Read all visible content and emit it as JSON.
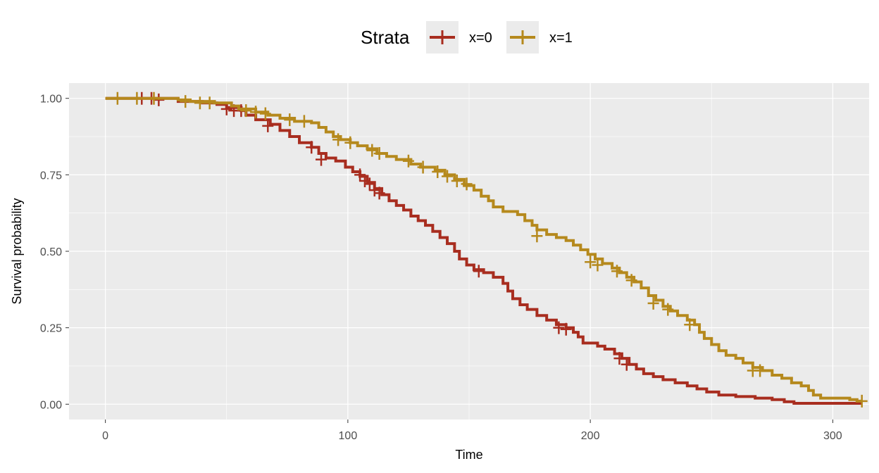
{
  "chart_data": {
    "type": "line",
    "subtype": "kaplan-meier step",
    "xlabel": "Time",
    "ylabel": "Survival probability",
    "xlim": [
      -15,
      315
    ],
    "ylim": [
      -0.05,
      1.05
    ],
    "x_ticks": [
      0,
      100,
      200,
      300
    ],
    "y_ticks": [
      0.0,
      0.25,
      0.5,
      0.75,
      1.0
    ],
    "x_tick_labels": [
      "0",
      "100",
      "200",
      "300"
    ],
    "y_tick_labels": [
      "0.00",
      "0.25",
      "0.50",
      "0.75",
      "1.00"
    ],
    "grid": true,
    "background": "#ebebeb",
    "legend": {
      "title": "Strata",
      "position": "top"
    },
    "series": [
      {
        "name": "x=0",
        "color": "#a82d1f",
        "points": [
          [
            0,
            1.0
          ],
          [
            25,
            1.0
          ],
          [
            30,
            0.99
          ],
          [
            40,
            0.985
          ],
          [
            46,
            0.98
          ],
          [
            50,
            0.97
          ],
          [
            56,
            0.96
          ],
          [
            58,
            0.945
          ],
          [
            62,
            0.93
          ],
          [
            68,
            0.915
          ],
          [
            72,
            0.895
          ],
          [
            76,
            0.875
          ],
          [
            80,
            0.855
          ],
          [
            85,
            0.84
          ],
          [
            88,
            0.82
          ],
          [
            91,
            0.805
          ],
          [
            95,
            0.795
          ],
          [
            99,
            0.775
          ],
          [
            102,
            0.76
          ],
          [
            105,
            0.745
          ],
          [
            108,
            0.725
          ],
          [
            111,
            0.705
          ],
          [
            114,
            0.685
          ],
          [
            117,
            0.665
          ],
          [
            120,
            0.65
          ],
          [
            123,
            0.635
          ],
          [
            126,
            0.615
          ],
          [
            129,
            0.6
          ],
          [
            132,
            0.585
          ],
          [
            135,
            0.565
          ],
          [
            138,
            0.545
          ],
          [
            141,
            0.525
          ],
          [
            144,
            0.5
          ],
          [
            146,
            0.475
          ],
          [
            149,
            0.455
          ],
          [
            152,
            0.44
          ],
          [
            156,
            0.43
          ],
          [
            160,
            0.415
          ],
          [
            164,
            0.395
          ],
          [
            166,
            0.37
          ],
          [
            168,
            0.345
          ],
          [
            171,
            0.325
          ],
          [
            174,
            0.31
          ],
          [
            178,
            0.29
          ],
          [
            182,
            0.275
          ],
          [
            186,
            0.26
          ],
          [
            190,
            0.25
          ],
          [
            193,
            0.235
          ],
          [
            195,
            0.22
          ],
          [
            197,
            0.2
          ],
          [
            203,
            0.19
          ],
          [
            206,
            0.18
          ],
          [
            210,
            0.165
          ],
          [
            213,
            0.15
          ],
          [
            216,
            0.13
          ],
          [
            219,
            0.115
          ],
          [
            222,
            0.1
          ],
          [
            226,
            0.09
          ],
          [
            230,
            0.08
          ],
          [
            235,
            0.07
          ],
          [
            240,
            0.06
          ],
          [
            244,
            0.05
          ],
          [
            248,
            0.04
          ],
          [
            253,
            0.03
          ],
          [
            260,
            0.025
          ],
          [
            268,
            0.02
          ],
          [
            275,
            0.015
          ],
          [
            280,
            0.008
          ],
          [
            284,
            0.003
          ],
          [
            312,
            0.003
          ]
        ],
        "censored": [
          [
            15,
            1.0
          ],
          [
            19,
            1.0
          ],
          [
            22,
            0.995
          ],
          [
            50,
            0.965
          ],
          [
            53,
            0.96
          ],
          [
            56,
            0.96
          ],
          [
            67,
            0.91
          ],
          [
            85,
            0.84
          ],
          [
            89,
            0.8
          ],
          [
            105,
            0.75
          ],
          [
            107,
            0.73
          ],
          [
            109,
            0.72
          ],
          [
            111,
            0.7
          ],
          [
            113,
            0.69
          ],
          [
            154,
            0.435
          ],
          [
            187,
            0.25
          ],
          [
            190,
            0.245
          ],
          [
            212,
            0.15
          ],
          [
            215,
            0.13
          ]
        ]
      },
      {
        "name": "x=1",
        "color": "#b5891d",
        "points": [
          [
            0,
            1.0
          ],
          [
            30,
            0.995
          ],
          [
            35,
            0.99
          ],
          [
            45,
            0.985
          ],
          [
            52,
            0.975
          ],
          [
            55,
            0.965
          ],
          [
            62,
            0.955
          ],
          [
            67,
            0.945
          ],
          [
            72,
            0.935
          ],
          [
            78,
            0.925
          ],
          [
            85,
            0.92
          ],
          [
            88,
            0.905
          ],
          [
            91,
            0.89
          ],
          [
            94,
            0.875
          ],
          [
            97,
            0.865
          ],
          [
            101,
            0.855
          ],
          [
            104,
            0.845
          ],
          [
            108,
            0.835
          ],
          [
            112,
            0.82
          ],
          [
            116,
            0.81
          ],
          [
            120,
            0.8
          ],
          [
            126,
            0.785
          ],
          [
            130,
            0.775
          ],
          [
            136,
            0.765
          ],
          [
            140,
            0.75
          ],
          [
            144,
            0.735
          ],
          [
            148,
            0.715
          ],
          [
            152,
            0.7
          ],
          [
            155,
            0.68
          ],
          [
            158,
            0.665
          ],
          [
            160,
            0.645
          ],
          [
            164,
            0.63
          ],
          [
            170,
            0.62
          ],
          [
            173,
            0.6
          ],
          [
            176,
            0.585
          ],
          [
            178,
            0.57
          ],
          [
            182,
            0.555
          ],
          [
            186,
            0.545
          ],
          [
            190,
            0.535
          ],
          [
            193,
            0.52
          ],
          [
            196,
            0.505
          ],
          [
            199,
            0.49
          ],
          [
            202,
            0.475
          ],
          [
            205,
            0.46
          ],
          [
            209,
            0.445
          ],
          [
            212,
            0.43
          ],
          [
            215,
            0.415
          ],
          [
            218,
            0.4
          ],
          [
            221,
            0.38
          ],
          [
            224,
            0.355
          ],
          [
            227,
            0.34
          ],
          [
            230,
            0.32
          ],
          [
            233,
            0.305
          ],
          [
            236,
            0.29
          ],
          [
            240,
            0.275
          ],
          [
            243,
            0.26
          ],
          [
            245,
            0.235
          ],
          [
            247,
            0.215
          ],
          [
            250,
            0.195
          ],
          [
            253,
            0.175
          ],
          [
            256,
            0.16
          ],
          [
            260,
            0.15
          ],
          [
            263,
            0.135
          ],
          [
            267,
            0.12
          ],
          [
            271,
            0.11
          ],
          [
            275,
            0.095
          ],
          [
            279,
            0.085
          ],
          [
            283,
            0.07
          ],
          [
            287,
            0.06
          ],
          [
            290,
            0.045
          ],
          [
            292,
            0.03
          ],
          [
            295,
            0.02
          ],
          [
            307,
            0.015
          ],
          [
            310,
            0.01
          ],
          [
            312,
            0.01
          ]
        ],
        "censored": [
          [
            5,
            1.0
          ],
          [
            13,
            1.0
          ],
          [
            20,
            1.0
          ],
          [
            33,
            0.99
          ],
          [
            39,
            0.985
          ],
          [
            43,
            0.985
          ],
          [
            58,
            0.96
          ],
          [
            62,
            0.955
          ],
          [
            66,
            0.95
          ],
          [
            76,
            0.93
          ],
          [
            82,
            0.925
          ],
          [
            96,
            0.865
          ],
          [
            101,
            0.855
          ],
          [
            110,
            0.83
          ],
          [
            113,
            0.82
          ],
          [
            125,
            0.795
          ],
          [
            131,
            0.775
          ],
          [
            137,
            0.76
          ],
          [
            141,
            0.745
          ],
          [
            145,
            0.73
          ],
          [
            149,
            0.72
          ],
          [
            178,
            0.55
          ],
          [
            200,
            0.465
          ],
          [
            203,
            0.455
          ],
          [
            211,
            0.435
          ],
          [
            217,
            0.405
          ],
          [
            226,
            0.33
          ],
          [
            232,
            0.31
          ],
          [
            241,
            0.26
          ],
          [
            267,
            0.11
          ],
          [
            270,
            0.11
          ],
          [
            312,
            0.01
          ]
        ]
      }
    ]
  }
}
